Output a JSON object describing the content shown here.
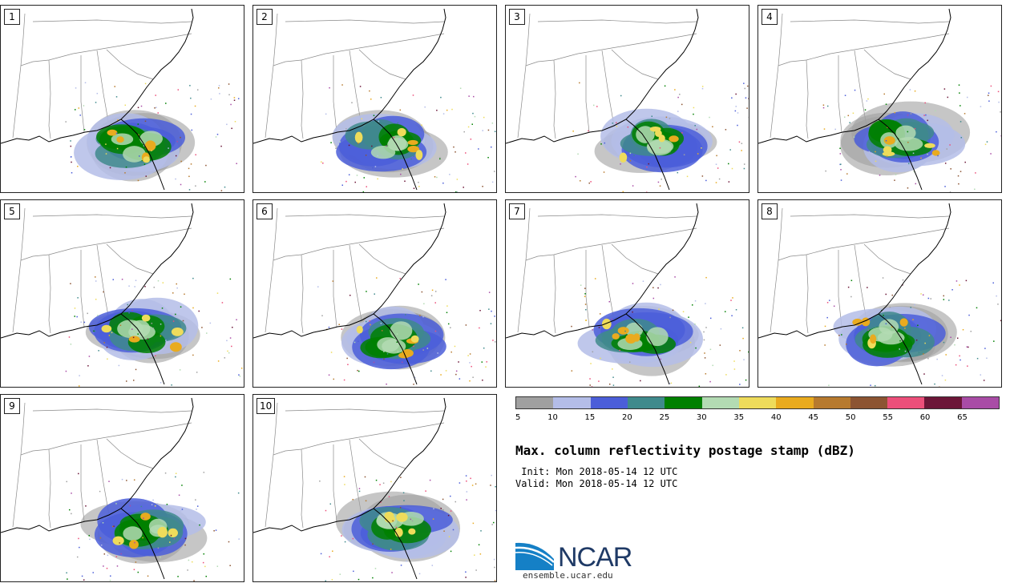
{
  "panels": [
    {
      "label": "1"
    },
    {
      "label": "2"
    },
    {
      "label": "3"
    },
    {
      "label": "4"
    },
    {
      "label": "5"
    },
    {
      "label": "6"
    },
    {
      "label": "7"
    },
    {
      "label": "8"
    },
    {
      "label": "9"
    },
    {
      "label": "10"
    }
  ],
  "colorbar": {
    "colors": [
      "#a0a0a0",
      "#b4bde8",
      "#4b5ed9",
      "#3f8a8c",
      "#008000",
      "#b3dbb3",
      "#eedc5b",
      "#e9ab1f",
      "#b77a2e",
      "#8c5432",
      "#ec4f7a",
      "#6c1638",
      "#a94ca6"
    ],
    "ticks": [
      "5",
      "10",
      "15",
      "20",
      "25",
      "30",
      "35",
      "40",
      "45",
      "50",
      "55",
      "60",
      "65"
    ]
  },
  "title": "Max. column reflectivity postage stamp (dBZ)",
  "init": " Init: Mon 2018-05-14 12 UTC",
  "valid": "Valid: Mon 2018-05-14 12 UTC",
  "logo": {
    "name": "NCAR",
    "url": "ensemble.ucar.edu"
  }
}
